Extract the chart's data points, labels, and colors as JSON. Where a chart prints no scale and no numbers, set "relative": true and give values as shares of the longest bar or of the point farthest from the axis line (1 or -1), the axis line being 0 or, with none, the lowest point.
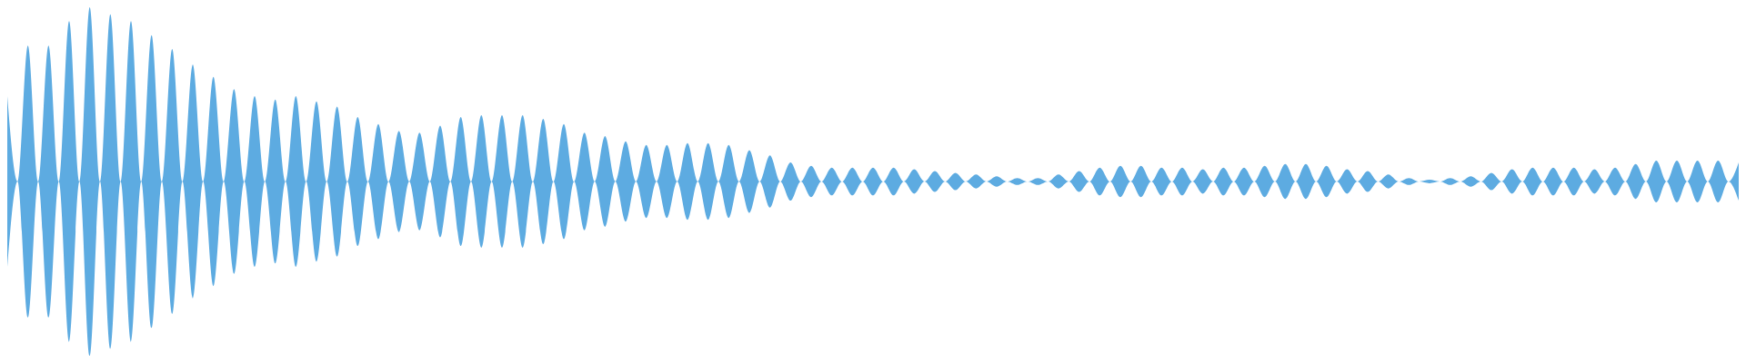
{
  "chart_data": {
    "type": "area",
    "relative": true,
    "categories": [
      null,
      null,
      null,
      null,
      null,
      null,
      null,
      null,
      null,
      null,
      null,
      null,
      null,
      null,
      null,
      null,
      null,
      null,
      null,
      null,
      null,
      null,
      null,
      null,
      null,
      null,
      null,
      null,
      null,
      null,
      null,
      null,
      null,
      null,
      null,
      null,
      null,
      null,
      null,
      null,
      null,
      null,
      null,
      null,
      null,
      null,
      null,
      null,
      null,
      null,
      null,
      null,
      null,
      null,
      null,
      null,
      null,
      null,
      null,
      null,
      null,
      null,
      null,
      null,
      null,
      null,
      null,
      null,
      null,
      null,
      null,
      null,
      null,
      null,
      null,
      null,
      null,
      null,
      null,
      null,
      null,
      null,
      null,
      null,
      null,
      null,
      null,
      null,
      null,
      null,
      null,
      null,
      null,
      null,
      null,
      null,
      null,
      null,
      null,
      null,
      null,
      null,
      null,
      null,
      null,
      null,
      null,
      null,
      null,
      null,
      null,
      null,
      null,
      null,
      null,
      null,
      null,
      null,
      null,
      null,
      null,
      null,
      null,
      null,
      null,
      null,
      null,
      null,
      null,
      null,
      null,
      null,
      null,
      null,
      null,
      null,
      null,
      null,
      null,
      null,
      null,
      null,
      null,
      null,
      null,
      null,
      null,
      null,
      null,
      null,
      null,
      null,
      null,
      null,
      null,
      null,
      null,
      null,
      null,
      null,
      null,
      null,
      null,
      null,
      null,
      null,
      null,
      null,
      null
    ],
    "series": [
      {
        "color": "#5dabe1",
        "values": [
          0.49,
          0,
          0.78,
          0,
          0.78,
          0,
          0.92,
          0,
          1.0,
          0,
          0.96,
          0,
          0.92,
          0,
          0.84,
          0,
          0.76,
          0,
          0.67,
          0,
          0.6,
          0,
          0.53,
          0,
          0.49,
          0,
          0.47,
          0,
          0.49,
          0,
          0.46,
          0,
          0.43,
          0,
          0.37,
          0,
          0.33,
          0,
          0.29,
          0,
          0.28,
          0,
          0.32,
          0,
          0.37,
          0,
          0.38,
          0,
          0.38,
          0,
          0.38,
          0,
          0.36,
          0,
          0.33,
          0,
          0.28,
          0,
          0.26,
          0,
          0.23,
          0,
          0.21,
          0,
          0.21,
          0,
          0.22,
          0,
          0.22,
          0,
          0.21,
          0,
          0.18,
          0,
          0.15,
          0,
          0.11,
          0,
          0.09,
          0,
          0.08,
          0,
          0.08,
          0,
          0.08,
          0,
          0.08,
          0,
          0.07,
          0,
          0.06,
          0,
          0.05,
          0,
          0.04,
          0,
          0.03,
          0,
          0.02,
          0,
          0.02,
          0,
          0.04,
          0,
          0.06,
          0,
          0.08,
          0,
          0.09,
          0,
          0.09,
          0,
          0.08,
          0,
          0.08,
          0,
          0.07,
          0,
          0.08,
          0,
          0.08,
          0,
          0.09,
          0,
          0.1,
          0,
          0.1,
          0,
          0.09,
          0,
          0.07,
          0,
          0.06,
          0,
          0.04,
          0,
          0.02,
          0,
          0.01,
          0,
          0.02,
          0,
          0.03,
          0,
          0.05,
          0,
          0.07,
          0,
          0.08,
          0,
          0.08,
          0,
          0.08,
          0,
          0.07,
          0,
          0.08,
          0,
          0.1,
          0,
          0.12,
          0,
          0.12,
          0,
          0.12,
          0,
          0.12,
          0,
          0.11
        ]
      }
    ]
  }
}
